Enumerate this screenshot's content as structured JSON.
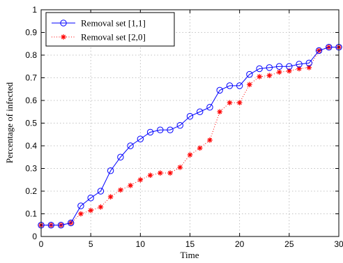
{
  "chart_data": {
    "type": "line",
    "title": "",
    "xlabel": "Time",
    "ylabel": "Percentage of infected",
    "xlim": [
      0,
      30
    ],
    "ylim": [
      0,
      1
    ],
    "xticks": [
      0,
      5,
      10,
      15,
      20,
      25,
      30
    ],
    "yticks": [
      0,
      0.1,
      0.2,
      0.3,
      0.4,
      0.5,
      0.6,
      0.7,
      0.8,
      0.9,
      1
    ],
    "grid": true,
    "legend_position": "top-left",
    "x": [
      0,
      1,
      2,
      3,
      4,
      5,
      6,
      7,
      8,
      9,
      10,
      11,
      12,
      13,
      14,
      15,
      16,
      17,
      18,
      19,
      20,
      21,
      22,
      23,
      24,
      25,
      26,
      27,
      28,
      29,
      30
    ],
    "series": [
      {
        "name": "Removal set [1,1]",
        "color": "#0000ff",
        "marker": "circle",
        "line_style": "solid",
        "values": [
          0.05,
          0.05,
          0.05,
          0.06,
          0.135,
          0.17,
          0.2,
          0.29,
          0.35,
          0.4,
          0.43,
          0.46,
          0.47,
          0.47,
          0.49,
          0.53,
          0.55,
          0.57,
          0.645,
          0.665,
          0.665,
          0.715,
          0.74,
          0.745,
          0.75,
          0.75,
          0.76,
          0.765,
          0.82,
          0.835,
          0.835
        ]
      },
      {
        "name": "Removal set [2,0]",
        "color": "#ff0000",
        "marker": "asterisk",
        "line_style": "dotted",
        "values": [
          0.05,
          0.05,
          0.05,
          0.06,
          0.1,
          0.115,
          0.13,
          0.175,
          0.205,
          0.225,
          0.25,
          0.27,
          0.28,
          0.28,
          0.305,
          0.36,
          0.39,
          0.425,
          0.55,
          0.59,
          0.59,
          0.67,
          0.705,
          0.71,
          0.725,
          0.73,
          0.74,
          0.745,
          0.82,
          0.835,
          0.835
        ]
      }
    ]
  }
}
